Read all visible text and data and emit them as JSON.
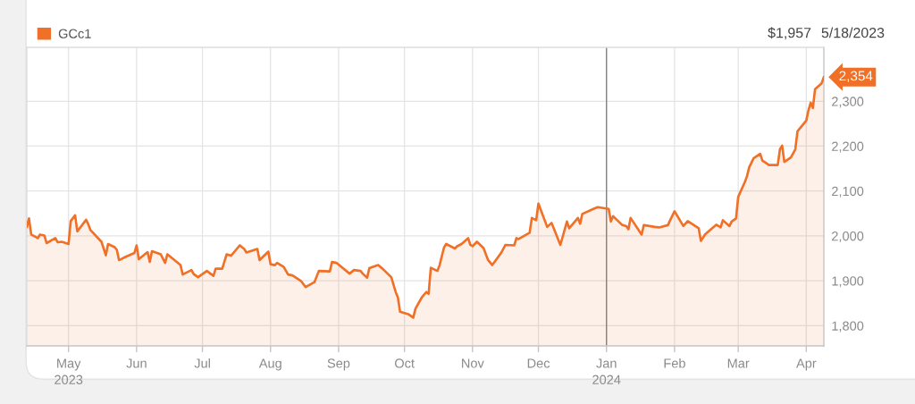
{
  "chart_data": {
    "type": "area",
    "x": [
      "2023-04-12",
      "2023-04-13",
      "2023-04-14",
      "2023-04-17",
      "2023-04-18",
      "2023-04-20",
      "2023-04-21",
      "2023-04-25",
      "2023-04-26",
      "2023-04-28",
      "2023-05-01",
      "2023-05-02",
      "2023-05-04",
      "2023-05-05",
      "2023-05-09",
      "2023-05-10",
      "2023-05-11",
      "2023-05-16",
      "2023-05-18",
      "2023-05-19",
      "2023-05-22",
      "2023-05-23",
      "2023-05-24",
      "2023-05-26",
      "2023-05-31",
      "2023-06-01",
      "2023-06-02",
      "2023-06-06",
      "2023-06-07",
      "2023-06-08",
      "2023-06-12",
      "2023-06-14",
      "2023-06-15",
      "2023-06-21",
      "2023-06-22",
      "2023-06-26",
      "2023-06-27",
      "2023-06-29",
      "2023-07-03",
      "2023-07-06",
      "2023-07-07",
      "2023-07-10",
      "2023-07-12",
      "2023-07-14",
      "2023-07-18",
      "2023-07-20",
      "2023-07-21",
      "2023-07-26",
      "2023-07-27",
      "2023-07-31",
      "2023-08-01",
      "2023-08-03",
      "2023-08-04",
      "2023-08-07",
      "2023-08-09",
      "2023-08-11",
      "2023-08-15",
      "2023-08-17",
      "2023-08-21",
      "2023-08-23",
      "2023-08-28",
      "2023-08-29",
      "2023-08-31",
      "2023-09-06",
      "2023-09-08",
      "2023-09-11",
      "2023-09-12",
      "2023-09-14",
      "2023-09-15",
      "2023-09-19",
      "2023-09-21",
      "2023-09-25",
      "2023-09-27",
      "2023-09-28",
      "2023-09-29",
      "2023-10-03",
      "2023-10-05",
      "2023-10-06",
      "2023-10-09",
      "2023-10-11",
      "2023-10-12",
      "2023-10-13",
      "2023-10-16",
      "2023-10-17",
      "2023-10-19",
      "2023-10-20",
      "2023-10-24",
      "2023-10-25",
      "2023-10-27",
      "2023-10-30",
      "2023-10-31",
      "2023-11-01",
      "2023-11-03",
      "2023-11-06",
      "2023-11-08",
      "2023-11-10",
      "2023-11-14",
      "2023-11-16",
      "2023-11-20",
      "2023-11-21",
      "2023-11-22",
      "2023-11-27",
      "2023-11-28",
      "2023-11-30",
      "2023-12-01",
      "2023-12-05",
      "2023-12-07",
      "2023-12-11",
      "2023-12-14",
      "2023-12-15",
      "2023-12-19",
      "2023-12-20",
      "2023-12-21",
      "2023-12-26",
      "2023-12-28",
      "2024-01-02",
      "2024-01-03",
      "2024-01-04",
      "2024-01-08",
      "2024-01-10",
      "2024-01-11",
      "2024-01-12",
      "2024-01-17",
      "2024-01-18",
      "2024-01-23",
      "2024-01-25",
      "2024-01-29",
      "2024-01-30",
      "2024-02-01",
      "2024-02-05",
      "2024-02-07",
      "2024-02-12",
      "2024-02-13",
      "2024-02-15",
      "2024-02-20",
      "2024-02-22",
      "2024-02-23",
      "2024-02-26",
      "2024-02-27",
      "2024-02-29",
      "2024-03-01",
      "2024-03-04",
      "2024-03-05",
      "2024-03-06",
      "2024-03-08",
      "2024-03-11",
      "2024-03-12",
      "2024-03-15",
      "2024-03-19",
      "2024-03-20",
      "2024-03-21",
      "2024-03-22",
      "2024-03-25",
      "2024-03-27",
      "2024-03-28",
      "2024-04-01",
      "2024-04-02",
      "2024-04-03",
      "2024-04-04",
      "2024-04-05",
      "2024-04-08",
      "2024-04-09"
    ],
    "series": [
      {
        "name": "GCc1",
        "color": "#ef7026",
        "values": [
          2020,
          2039,
          2003,
          1995,
          2003,
          2001,
          1984,
          1995,
          1986,
          1987,
          1982,
          2033,
          2046,
          2010,
          2036,
          2026,
          2013,
          1987,
          1957,
          1982,
          1975,
          1969,
          1946,
          1951,
          1962,
          1979,
          1948,
          1964,
          1942,
          1966,
          1959,
          1940,
          1959,
          1935,
          1914,
          1924,
          1915,
          1908,
          1922,
          1911,
          1927,
          1927,
          1959,
          1956,
          1979,
          1971,
          1963,
          1971,
          1946,
          1965,
          1937,
          1935,
          1940,
          1931,
          1914,
          1912,
          1899,
          1886,
          1897,
          1922,
          1921,
          1942,
          1940,
          1916,
          1924,
          1922,
          1916,
          1907,
          1928,
          1935,
          1927,
          1908,
          1875,
          1863,
          1831,
          1825,
          1818,
          1838,
          1864,
          1875,
          1871,
          1929,
          1922,
          1935,
          1974,
          1982,
          1972,
          1977,
          1982,
          1995,
          1980,
          1977,
          1987,
          1973,
          1947,
          1935,
          1962,
          1980,
          1979,
          1995,
          1993,
          2007,
          2040,
          2035,
          2072,
          2020,
          2029,
          1980,
          2032,
          2017,
          2040,
          2027,
          2049,
          2060,
          2064,
          2060,
          2032,
          2044,
          2025,
          2022,
          2015,
          2040,
          2003,
          2024,
          2020,
          2019,
          2024,
          2035,
          2055,
          2022,
          2033,
          2017,
          1989,
          2004,
          2025,
          2019,
          2035,
          2022,
          2032,
          2039,
          2087,
          2120,
          2133,
          2153,
          2173,
          2183,
          2168,
          2158,
          2158,
          2193,
          2201,
          2165,
          2175,
          2193,
          2233,
          2257,
          2280,
          2297,
          2285,
          2327,
          2340,
          2354
        ]
      }
    ],
    "xlim": [
      "2023-04-12",
      "2024-04-09"
    ],
    "xticks": [
      {
        "value": "2023-05-01",
        "label": "May\n2023"
      },
      {
        "value": "2023-06-01",
        "label": "Jun"
      },
      {
        "value": "2023-07-01",
        "label": "Jul"
      },
      {
        "value": "2023-08-01",
        "label": "Aug"
      },
      {
        "value": "2023-09-01",
        "label": "Sep"
      },
      {
        "value": "2023-10-01",
        "label": "Oct"
      },
      {
        "value": "2023-11-01",
        "label": "Nov"
      },
      {
        "value": "2023-12-01",
        "label": "Dec"
      },
      {
        "value": "2024-01-01",
        "label": "Jan\n2024"
      },
      {
        "value": "2024-02-01",
        "label": "Feb"
      },
      {
        "value": "2024-03-01",
        "label": "Mar"
      },
      {
        "value": "2024-04-01",
        "label": "Apr"
      }
    ],
    "ylim": [
      1755,
      2420
    ],
    "yticks": [
      {
        "value": 1800,
        "label": "1,800"
      },
      {
        "value": 1900,
        "label": "1,900"
      },
      {
        "value": 2000,
        "label": "2,000"
      },
      {
        "value": 2100,
        "label": "2,100"
      },
      {
        "value": 2200,
        "label": "2,200"
      },
      {
        "value": 2300,
        "label": "2,300"
      }
    ],
    "grid": true,
    "legend": "top left",
    "ref_lines": [
      {
        "axis": "x",
        "value": "2024-01-01",
        "color": "#808080"
      }
    ],
    "annotations": [
      "$1,957",
      "5/18/2023",
      {
        "text": "2,354",
        "x": "2024-04-09",
        "y": 2354
      }
    ]
  }
}
